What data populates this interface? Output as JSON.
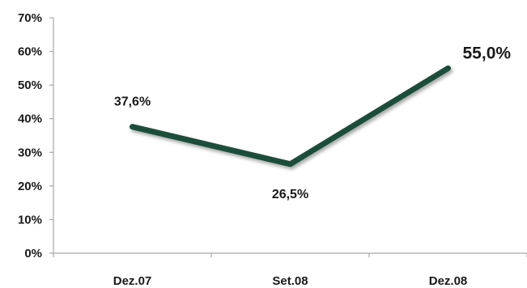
{
  "chart_data": {
    "type": "line",
    "categories": [
      "Dez.07",
      "Set.08",
      "Dez.08"
    ],
    "series": [
      {
        "values": [
          37.6,
          26.5,
          55.0
        ]
      }
    ],
    "data_labels": [
      "37,6%",
      "26,5%",
      "55,0%"
    ],
    "ylim": [
      0,
      70
    ],
    "yticks": [
      0,
      10,
      20,
      30,
      40,
      50,
      60,
      70
    ],
    "ytick_labels": [
      "0%",
      "10%",
      "20%",
      "30%",
      "40%",
      "50%",
      "60%",
      "70%"
    ],
    "title": "",
    "xlabel": "",
    "ylabel": "",
    "grid": false,
    "legend": "none",
    "colors": {
      "line": "#1e4d3a",
      "axis": "#a6a6a6",
      "text": "#1a1a1a"
    }
  }
}
